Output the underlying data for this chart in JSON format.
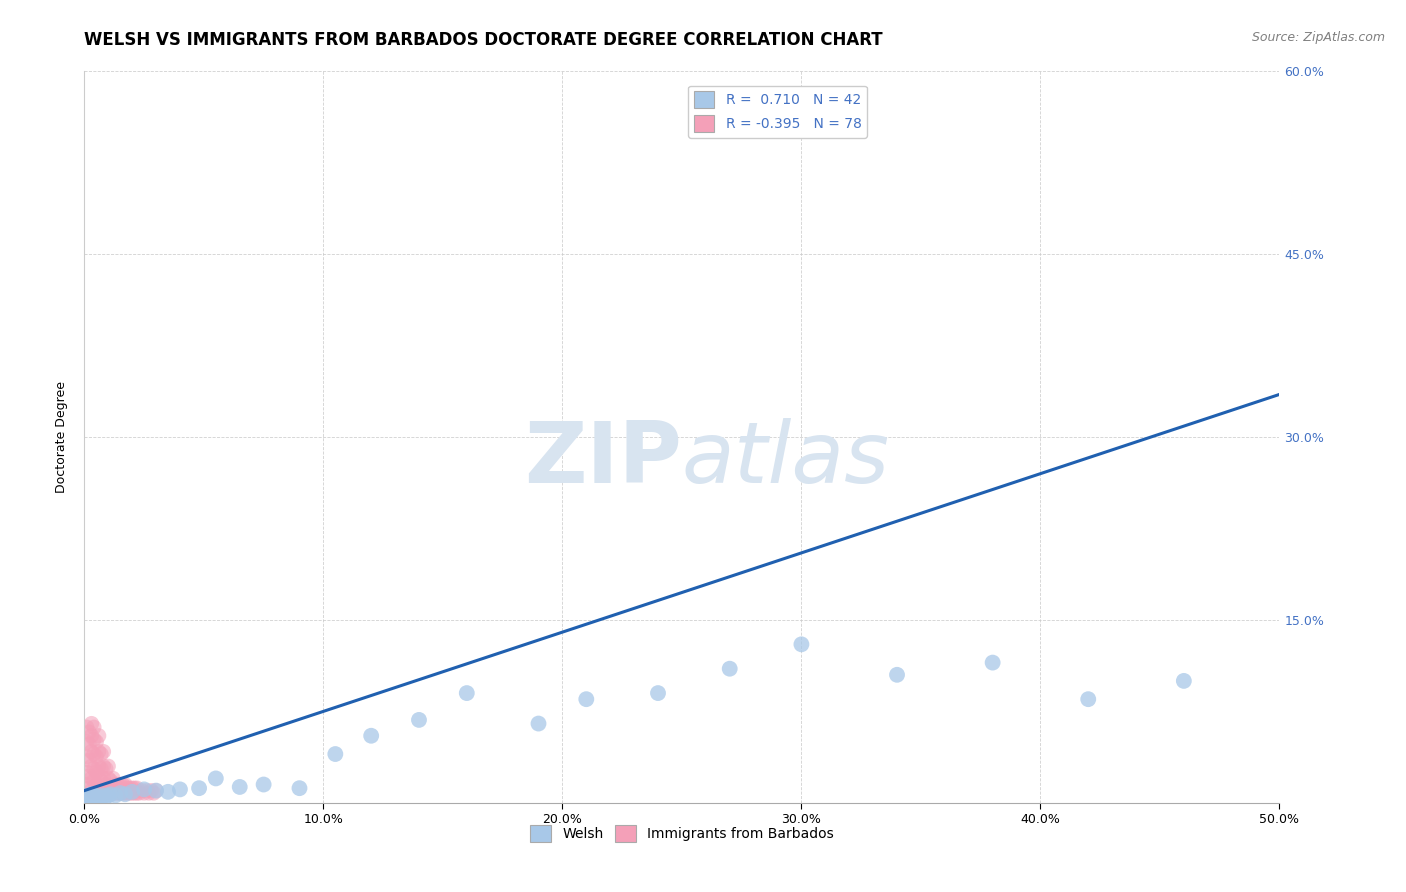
{
  "title": "WELSH VS IMMIGRANTS FROM BARBADOS DOCTORATE DEGREE CORRELATION CHART",
  "source": "Source: ZipAtlas.com",
  "ylabel": "Doctorate Degree",
  "xlim": [
    0,
    0.5
  ],
  "ylim": [
    0,
    0.6
  ],
  "xticks": [
    0.0,
    0.1,
    0.2,
    0.3,
    0.4,
    0.5
  ],
  "yticks": [
    0.0,
    0.15,
    0.3,
    0.45,
    0.6
  ],
  "welsh_R": 0.71,
  "welsh_N": 42,
  "barbados_R": -0.395,
  "barbados_N": 78,
  "welsh_color": "#a8c8e8",
  "barbados_color": "#f4a0b8",
  "trendline_color": "#2060b0",
  "watermark_color": "#d8e4f0",
  "background_color": "#ffffff",
  "welsh_points_x": [
    0.001,
    0.001,
    0.002,
    0.002,
    0.003,
    0.003,
    0.004,
    0.004,
    0.005,
    0.005,
    0.006,
    0.007,
    0.008,
    0.009,
    0.01,
    0.011,
    0.013,
    0.015,
    0.017,
    0.02,
    0.025,
    0.03,
    0.035,
    0.04,
    0.048,
    0.055,
    0.065,
    0.075,
    0.09,
    0.105,
    0.12,
    0.14,
    0.16,
    0.19,
    0.21,
    0.24,
    0.27,
    0.3,
    0.34,
    0.38,
    0.42,
    0.46
  ],
  "welsh_points_y": [
    0.003,
    0.005,
    0.002,
    0.006,
    0.004,
    0.007,
    0.003,
    0.005,
    0.004,
    0.006,
    0.005,
    0.004,
    0.006,
    0.005,
    0.006,
    0.007,
    0.006,
    0.008,
    0.007,
    0.009,
    0.011,
    0.01,
    0.009,
    0.011,
    0.012,
    0.02,
    0.013,
    0.015,
    0.012,
    0.04,
    0.055,
    0.068,
    0.09,
    0.065,
    0.085,
    0.09,
    0.11,
    0.13,
    0.105,
    0.115,
    0.085,
    0.1
  ],
  "barbados_points_x": [
    0.001,
    0.001,
    0.001,
    0.001,
    0.001,
    0.002,
    0.002,
    0.002,
    0.002,
    0.002,
    0.003,
    0.003,
    0.003,
    0.003,
    0.003,
    0.003,
    0.004,
    0.004,
    0.004,
    0.004,
    0.004,
    0.004,
    0.005,
    0.005,
    0.005,
    0.005,
    0.005,
    0.006,
    0.006,
    0.006,
    0.006,
    0.006,
    0.007,
    0.007,
    0.007,
    0.007,
    0.008,
    0.008,
    0.008,
    0.008,
    0.009,
    0.009,
    0.009,
    0.01,
    0.01,
    0.01,
    0.011,
    0.011,
    0.012,
    0.012,
    0.013,
    0.013,
    0.014,
    0.014,
    0.015,
    0.015,
    0.016,
    0.016,
    0.017,
    0.017,
    0.018,
    0.018,
    0.019,
    0.019,
    0.02,
    0.02,
    0.021,
    0.021,
    0.022,
    0.022,
    0.023,
    0.024,
    0.025,
    0.026,
    0.027,
    0.028,
    0.029,
    0.03
  ],
  "barbados_points_y": [
    0.015,
    0.025,
    0.038,
    0.05,
    0.062,
    0.012,
    0.022,
    0.035,
    0.048,
    0.058,
    0.01,
    0.02,
    0.03,
    0.042,
    0.055,
    0.065,
    0.008,
    0.018,
    0.028,
    0.04,
    0.052,
    0.062,
    0.008,
    0.015,
    0.025,
    0.038,
    0.05,
    0.01,
    0.02,
    0.03,
    0.042,
    0.055,
    0.008,
    0.018,
    0.028,
    0.04,
    0.01,
    0.02,
    0.03,
    0.042,
    0.008,
    0.015,
    0.028,
    0.01,
    0.02,
    0.03,
    0.008,
    0.018,
    0.01,
    0.02,
    0.008,
    0.015,
    0.008,
    0.015,
    0.008,
    0.015,
    0.008,
    0.015,
    0.008,
    0.015,
    0.008,
    0.012,
    0.008,
    0.012,
    0.008,
    0.012,
    0.008,
    0.012,
    0.008,
    0.012,
    0.008,
    0.01,
    0.008,
    0.01,
    0.008,
    0.01,
    0.008,
    0.01
  ],
  "trendline_x": [
    0.0,
    0.5
  ],
  "trendline_y": [
    0.01,
    0.335
  ],
  "legend_welsh_label": "Welsh",
  "legend_barbados_label": "Immigrants from Barbados",
  "title_fontsize": 12,
  "axis_label_fontsize": 9,
  "tick_fontsize": 9,
  "legend_fontsize": 10,
  "source_fontsize": 9
}
